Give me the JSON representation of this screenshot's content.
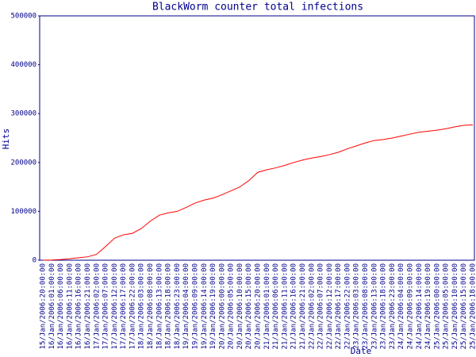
{
  "chart_data": {
    "type": "line",
    "title": "BlackWorm counter total infections",
    "x_label": "Date",
    "y_label": "Hits",
    "categories": [
      "15/Jan/2006:20:00:00",
      "16/Jan/2006:01:00:00",
      "16/Jan/2006:06:00:00",
      "16/Jan/2006:11:00:00",
      "16/Jan/2006:16:00:00",
      "16/Jan/2006:21:00:00",
      "17/Jan/2006:02:00:00",
      "17/Jan/2006:07:00:00",
      "17/Jan/2006:12:00:00",
      "17/Jan/2006:17:00:00",
      "17/Jan/2006:22:00:00",
      "18/Jan/2006:03:00:00",
      "18/Jan/2006:08:00:00",
      "18/Jan/2006:13:00:00",
      "18/Jan/2006:18:00:00",
      "18/Jan/2006:23:00:00",
      "19/Jan/2006:04:00:00",
      "19/Jan/2006:09:00:00",
      "19/Jan/2006:14:00:00",
      "19/Jan/2006:19:00:00",
      "20/Jan/2006:00:00:00",
      "20/Jan/2006:05:00:00",
      "20/Jan/2006:10:00:00",
      "20/Jan/2006:15:00:00",
      "20/Jan/2006:20:00:00",
      "21/Jan/2006:01:00:00",
      "21/Jan/2006:06:00:00",
      "21/Jan/2006:11:00:00",
      "21/Jan/2006:16:00:00",
      "21/Jan/2006:21:00:00",
      "22/Jan/2006:02:00:00",
      "22/Jan/2006:07:00:00",
      "22/Jan/2006:12:00:00",
      "22/Jan/2006:17:00:00",
      "22/Jan/2006:22:00:00",
      "23/Jan/2006:03:00:00",
      "23/Jan/2006:08:00:00",
      "23/Jan/2006:13:00:00",
      "23/Jan/2006:18:00:00",
      "23/Jan/2006:23:00:00",
      "24/Jan/2006:04:00:00",
      "24/Jan/2006:09:00:00",
      "24/Jan/2006:14:00:00",
      "24/Jan/2006:19:00:00",
      "25/Jan/2006:00:00:00",
      "25/Jan/2006:05:00:00",
      "25/Jan/2006:10:00:00",
      "25/Jan/2006:15:00:00",
      "25/Jan/2006:18:00:00"
    ],
    "values": [
      0,
      500,
      1500,
      3000,
      5000,
      7000,
      12000,
      28000,
      45000,
      52000,
      55000,
      65000,
      80000,
      92000,
      97000,
      100000,
      108000,
      117000,
      123000,
      127000,
      134000,
      142000,
      150000,
      163000,
      180000,
      185000,
      189000,
      194000,
      200000,
      205000,
      209000,
      212000,
      216000,
      221000,
      228000,
      234000,
      240000,
      245000,
      247000,
      250000,
      254000,
      258000,
      262000,
      264000,
      266000,
      269000,
      273000,
      276000,
      277000
    ],
    "color": "#ff0000",
    "ylim": [
      0,
      500000
    ],
    "yticks": [
      0,
      100000,
      200000,
      300000,
      400000,
      500000
    ],
    "grid": false
  }
}
